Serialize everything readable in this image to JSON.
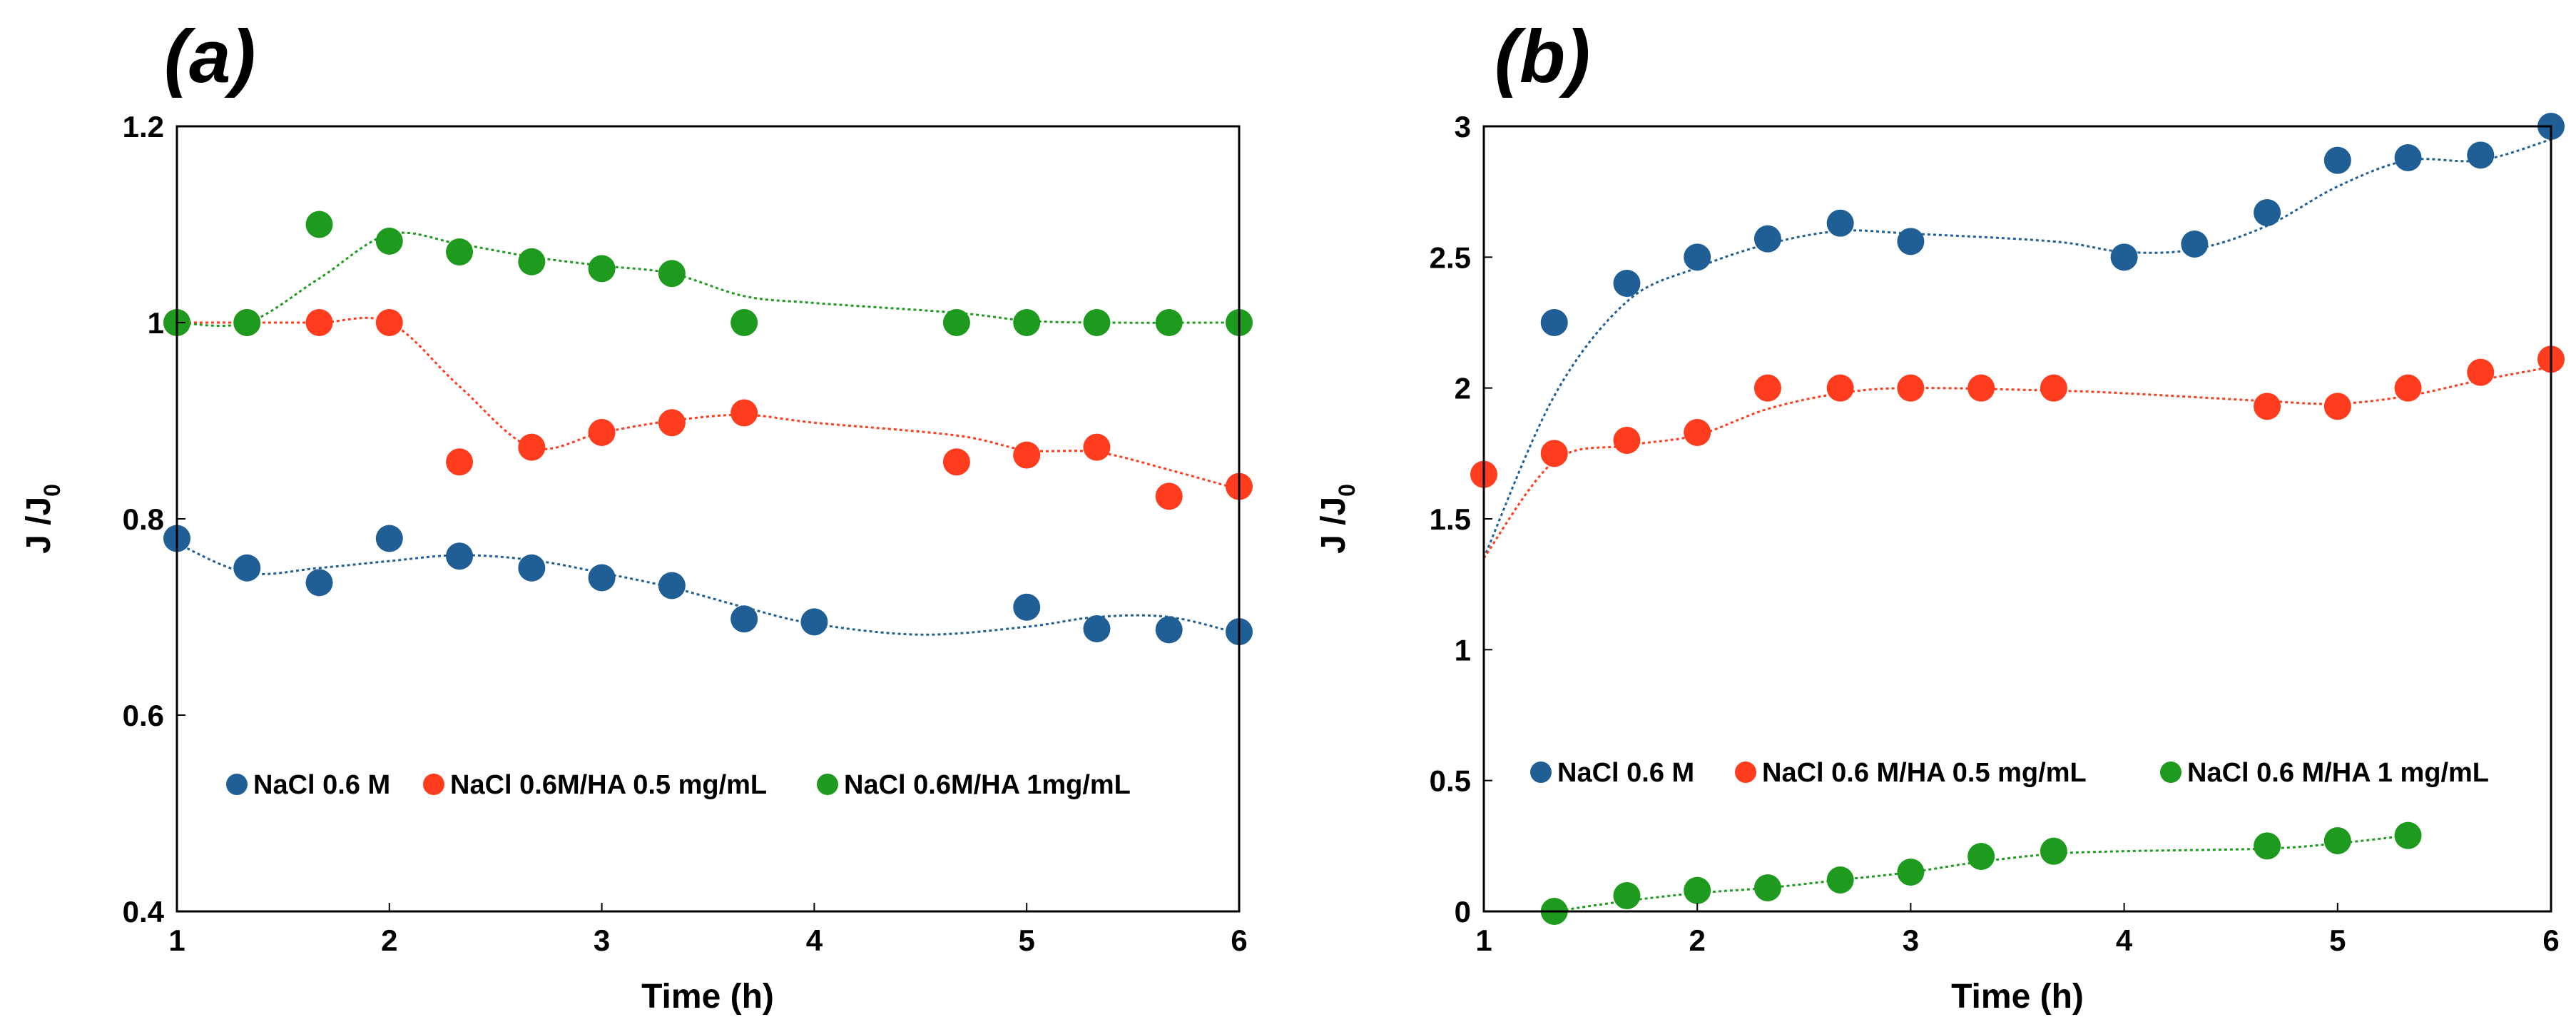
{
  "chart_data": [
    {
      "panel_label": "(a)",
      "type": "scatter",
      "xlabel": "Time (h)",
      "ylabel": "J /J",
      "ylabel_sub": "0",
      "xlim": [
        1,
        6
      ],
      "ylim": [
        0.4,
        1.2
      ],
      "xticks": [
        "1",
        "2",
        "3",
        "4",
        "5",
        "6"
      ],
      "yticks": [
        "0.4",
        "0.6",
        "0.8",
        "1",
        "1.2"
      ],
      "legend_position": "lower-center",
      "series": [
        {
          "name": "NaCl 0.6 M",
          "color": "#1f5f95",
          "points": [
            [
              1,
              0.78
            ],
            [
              1.33,
              0.75
            ],
            [
              1.67,
              0.735
            ],
            [
              2,
              0.78
            ],
            [
              2.33,
              0.762
            ],
            [
              2.67,
              0.75
            ],
            [
              3,
              0.74
            ],
            [
              3.33,
              0.732
            ],
            [
              3.67,
              0.698
            ],
            [
              4,
              0.695
            ],
            [
              5,
              0.71
            ],
            [
              5.33,
              0.688
            ],
            [
              5.67,
              0.687
            ],
            [
              6,
              0.685
            ]
          ],
          "trend": [
            [
              1,
              0.775
            ],
            [
              1.33,
              0.745
            ],
            [
              1.67,
              0.75
            ],
            [
              2,
              0.757
            ],
            [
              2.33,
              0.763
            ],
            [
              2.67,
              0.758
            ],
            [
              3,
              0.745
            ],
            [
              3.33,
              0.73
            ],
            [
              3.67,
              0.71
            ],
            [
              4,
              0.693
            ],
            [
              4.5,
              0.682
            ],
            [
              5,
              0.69
            ],
            [
              5.33,
              0.7
            ],
            [
              5.67,
              0.7
            ],
            [
              6,
              0.683
            ]
          ]
        },
        {
          "name": "NaCl 0.6M/HA 0.5 mg/mL",
          "color": "#ff3c1e",
          "points": [
            [
              1,
              1.0
            ],
            [
              1.33,
              1.0
            ],
            [
              1.67,
              1.0
            ],
            [
              2,
              1.0
            ],
            [
              2.33,
              0.858
            ],
            [
              2.67,
              0.873
            ],
            [
              3,
              0.888
            ],
            [
              3.33,
              0.898
            ],
            [
              3.67,
              0.908
            ],
            [
              4.67,
              0.858
            ],
            [
              5,
              0.865
            ],
            [
              5.33,
              0.873
            ],
            [
              5.67,
              0.823
            ],
            [
              6,
              0.833
            ]
          ],
          "trend": [
            [
              1,
              1.0
            ],
            [
              1.33,
              1.0
            ],
            [
              1.67,
              1.0
            ],
            [
              2,
              1.0
            ],
            [
              2.33,
              0.935
            ],
            [
              2.67,
              0.873
            ],
            [
              3,
              0.888
            ],
            [
              3.33,
              0.9
            ],
            [
              3.67,
              0.906
            ],
            [
              4,
              0.898
            ],
            [
              4.67,
              0.885
            ],
            [
              5,
              0.87
            ],
            [
              5.33,
              0.868
            ],
            [
              5.67,
              0.85
            ],
            [
              6,
              0.83
            ]
          ]
        },
        {
          "name": "NaCl 0.6M/HA 1mg/mL",
          "color": "#1e9b1e",
          "points": [
            [
              1,
              1.0
            ],
            [
              1.33,
              1.0
            ],
            [
              1.67,
              1.1
            ],
            [
              2,
              1.083
            ],
            [
              2.33,
              1.072
            ],
            [
              2.67,
              1.062
            ],
            [
              3,
              1.055
            ],
            [
              3.33,
              1.05
            ],
            [
              3.67,
              1.0
            ],
            [
              4.67,
              1.0
            ],
            [
              5,
              1.0
            ],
            [
              5.33,
              1.0
            ],
            [
              5.67,
              1.0
            ],
            [
              6,
              1.0
            ]
          ],
          "trend": [
            [
              1,
              1.0
            ],
            [
              1.33,
              1.0
            ],
            [
              1.67,
              1.045
            ],
            [
              2,
              1.09
            ],
            [
              2.33,
              1.08
            ],
            [
              2.67,
              1.067
            ],
            [
              3,
              1.058
            ],
            [
              3.33,
              1.05
            ],
            [
              3.67,
              1.027
            ],
            [
              4,
              1.02
            ],
            [
              4.67,
              1.01
            ],
            [
              5,
              1.002
            ],
            [
              5.33,
              1.0
            ],
            [
              6,
              1.0
            ]
          ]
        }
      ]
    },
    {
      "panel_label": "(b)",
      "type": "scatter",
      "xlabel": "Time (h)",
      "ylabel": "J /J",
      "ylabel_sub": "0",
      "xlim": [
        1,
        6
      ],
      "ylim": [
        0,
        3
      ],
      "xticks": [
        "1",
        "2",
        "3",
        "4",
        "5",
        "6"
      ],
      "yticks": [
        "0",
        "0.5",
        "1",
        "1.5",
        "2",
        "2.5",
        "3"
      ],
      "legend_position": "lower-center",
      "series": [
        {
          "name": "NaCl 0.6 M",
          "color": "#1f5f95",
          "points": [
            [
              1.33,
              2.25
            ],
            [
              1.67,
              2.4
            ],
            [
              2,
              2.5
            ],
            [
              2.33,
              2.57
            ],
            [
              2.67,
              2.63
            ],
            [
              3,
              2.56
            ],
            [
              4,
              2.5
            ],
            [
              4.33,
              2.55
            ],
            [
              4.67,
              2.67
            ],
            [
              5,
              2.87
            ],
            [
              5.33,
              2.88
            ],
            [
              5.67,
              2.89
            ],
            [
              6,
              3.0
            ]
          ],
          "trend": [
            [
              1,
              1.35
            ],
            [
              1.33,
              1.97
            ],
            [
              1.67,
              2.33
            ],
            [
              2,
              2.46
            ],
            [
              2.33,
              2.55
            ],
            [
              2.67,
              2.6
            ],
            [
              3,
              2.59
            ],
            [
              3.67,
              2.56
            ],
            [
              4,
              2.52
            ],
            [
              4.33,
              2.53
            ],
            [
              4.67,
              2.62
            ],
            [
              5,
              2.77
            ],
            [
              5.33,
              2.87
            ],
            [
              5.67,
              2.87
            ],
            [
              6,
              2.95
            ]
          ]
        },
        {
          "name": "NaCl 0.6 M/HA 0.5 mg/mL",
          "color": "#ff3c1e",
          "points": [
            [
              1,
              1.67
            ],
            [
              1.33,
              1.75
            ],
            [
              1.67,
              1.8
            ],
            [
              2,
              1.83
            ],
            [
              2.33,
              2.0
            ],
            [
              2.67,
              2.0
            ],
            [
              3,
              2.0
            ],
            [
              3.33,
              2.0
            ],
            [
              3.67,
              2.0
            ],
            [
              4.67,
              1.93
            ],
            [
              5,
              1.93
            ],
            [
              5.33,
              2.0
            ],
            [
              5.67,
              2.06
            ],
            [
              6,
              2.11
            ]
          ],
          "trend": [
            [
              1,
              1.35
            ],
            [
              1.33,
              1.72
            ],
            [
              1.67,
              1.78
            ],
            [
              2,
              1.82
            ],
            [
              2.33,
              1.92
            ],
            [
              2.67,
              1.98
            ],
            [
              3,
              2.0
            ],
            [
              3.67,
              1.99
            ],
            [
              4,
              1.98
            ],
            [
              4.67,
              1.95
            ],
            [
              5,
              1.94
            ],
            [
              5.33,
              1.97
            ],
            [
              5.67,
              2.03
            ],
            [
              6,
              2.08
            ]
          ]
        },
        {
          "name": "NaCl 0.6 M/HA 1 mg/mL",
          "color": "#1e9b1e",
          "points": [
            [
              1.33,
              0.0
            ],
            [
              1.67,
              0.06
            ],
            [
              2,
              0.08
            ],
            [
              2.33,
              0.09
            ],
            [
              2.67,
              0.12
            ],
            [
              3,
              0.15
            ],
            [
              3.33,
              0.21
            ],
            [
              3.67,
              0.23
            ],
            [
              4.67,
              0.25
            ],
            [
              5,
              0.27
            ],
            [
              5.33,
              0.29
            ]
          ],
          "trend": [
            [
              1.33,
              0.0
            ],
            [
              1.67,
              0.04
            ],
            [
              2,
              0.07
            ],
            [
              2.33,
              0.09
            ],
            [
              2.67,
              0.12
            ],
            [
              3,
              0.15
            ],
            [
              3.33,
              0.19
            ],
            [
              3.67,
              0.22
            ],
            [
              4,
              0.23
            ],
            [
              4.67,
              0.24
            ],
            [
              5,
              0.26
            ],
            [
              5.33,
              0.29
            ]
          ]
        }
      ]
    }
  ]
}
